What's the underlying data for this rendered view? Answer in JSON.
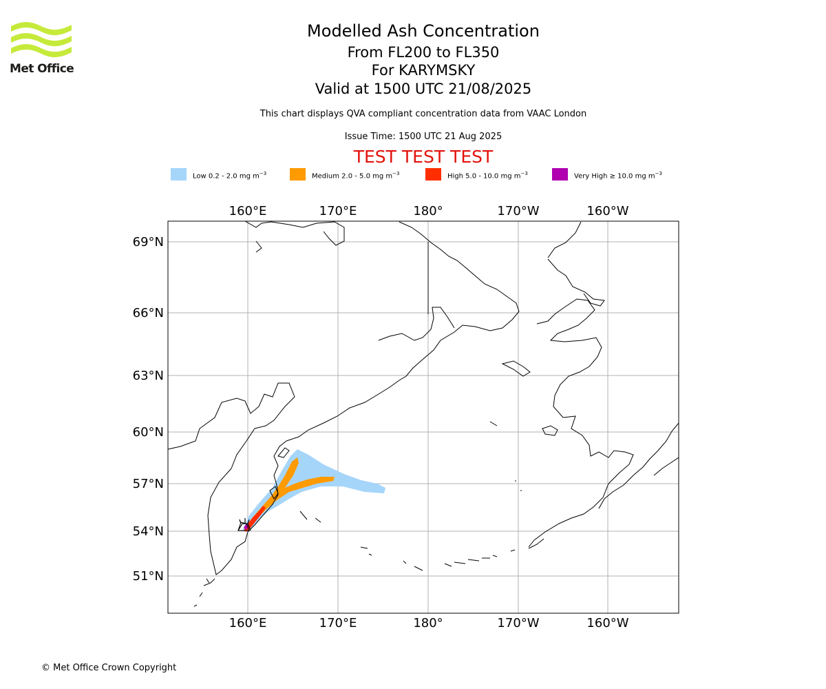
{
  "logo": {
    "text": "Met Office",
    "wave_color": "#c6ea3a"
  },
  "header": {
    "title": "Modelled Ash Concentration",
    "levels": "From FL200 to FL350",
    "volcano": "For KARYMSKY",
    "valid": "Valid at 1500 UTC 21/08/2025",
    "compliance": "This chart displays QVA compliant concentration data from VAAC London",
    "issue_time": "Issue Time: 1500 UTC 21 Aug 2025",
    "test_banner": "TEST TEST TEST"
  },
  "legend": [
    {
      "label": "Low 0.2 - 2.0 mg m",
      "sup": "−3",
      "color": "#a6d5fa"
    },
    {
      "label": "Medium 2.0 - 5.0 mg m",
      "sup": "−3",
      "color": "#ff9a00"
    },
    {
      "label": "High 5.0 - 10.0 mg m",
      "sup": "−3",
      "color": "#ff2e00"
    },
    {
      "label": "Very High  ≥  10.0 mg m",
      "sup": "−3",
      "color": "#b000b0"
    }
  ],
  "map": {
    "lon_labels": [
      "160°E",
      "170°E",
      "180°",
      "170°W",
      "160°W"
    ],
    "lat_labels": [
      "69°N",
      "66°N",
      "63°N",
      "60°N",
      "57°N",
      "54°N",
      "51°N"
    ],
    "volcano_marker_icon": "volcano-icon"
  },
  "footer": {
    "copyright": "© Met Office Crown Copyright"
  }
}
